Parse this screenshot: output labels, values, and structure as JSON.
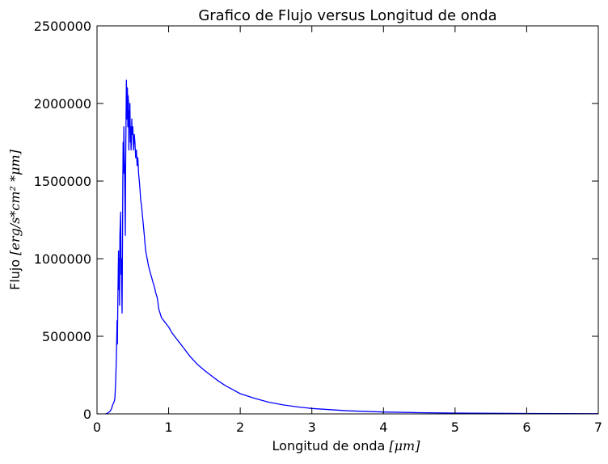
{
  "chart_data": {
    "type": "line",
    "title": "Grafico de Flujo versus Longitud de onda",
    "xlabel": {
      "text": "Longitud de onda ",
      "unit": "[μm]"
    },
    "ylabel": {
      "text": "Flujo ",
      "unit": "[erg/s*cm² *μm]"
    },
    "xlim": [
      0,
      7
    ],
    "ylim": [
      0,
      2500000
    ],
    "xticks": [
      "0",
      "1",
      "2",
      "3",
      "4",
      "5",
      "6",
      "7"
    ],
    "yticks": [
      "0",
      "500000",
      "1000000",
      "1500000",
      "2000000",
      "2500000"
    ],
    "grid": false,
    "line_color": "#0000ff",
    "series": [
      {
        "x": [
          0.12,
          0.15,
          0.18,
          0.2,
          0.22,
          0.24,
          0.25,
          0.26,
          0.27,
          0.28,
          0.285,
          0.29,
          0.3,
          0.305,
          0.31,
          0.315,
          0.32,
          0.33,
          0.335,
          0.34,
          0.35,
          0.355,
          0.36,
          0.365,
          0.37,
          0.375,
          0.38,
          0.385,
          0.39,
          0.395,
          0.4,
          0.405,
          0.41,
          0.415,
          0.42,
          0.425,
          0.43,
          0.435,
          0.44,
          0.445,
          0.45,
          0.455,
          0.46,
          0.465,
          0.47,
          0.475,
          0.48,
          0.485,
          0.49,
          0.5,
          0.51,
          0.52,
          0.53,
          0.54,
          0.55,
          0.56,
          0.57,
          0.58,
          0.59,
          0.6,
          0.61,
          0.62,
          0.63,
          0.64,
          0.65,
          0.66,
          0.67,
          0.68,
          0.7,
          0.72,
          0.75,
          0.78,
          0.8,
          0.82,
          0.84,
          0.85,
          0.86,
          0.88,
          0.9,
          0.95,
          1.0,
          1.05,
          1.1,
          1.15,
          1.2,
          1.25,
          1.3,
          1.35,
          1.4,
          1.5,
          1.6,
          1.7,
          1.8,
          1.9,
          2.0,
          2.2,
          2.4,
          2.6,
          2.8,
          3.0,
          3.5,
          4.0,
          4.5,
          5.0,
          5.5,
          6.0,
          6.5,
          7.0
        ],
        "y": [
          0,
          5000,
          15000,
          30000,
          60000,
          80000,
          100000,
          200000,
          350000,
          600000,
          450000,
          700000,
          1050000,
          800000,
          1000000,
          700000,
          1150000,
          1300000,
          900000,
          1000000,
          650000,
          1000000,
          1500000,
          1750000,
          1550000,
          1850000,
          1650000,
          1600000,
          1400000,
          1150000,
          1600000,
          1900000,
          2150000,
          2050000,
          1900000,
          2100000,
          1850000,
          2050000,
          2000000,
          1700000,
          1950000,
          1850000,
          2000000,
          1750000,
          1850000,
          1700000,
          1750000,
          1900000,
          1800000,
          1850000,
          1700000,
          1800000,
          1750000,
          1650000,
          1700000,
          1600000,
          1650000,
          1550000,
          1500000,
          1450000,
          1380000,
          1350000,
          1300000,
          1250000,
          1200000,
          1150000,
          1100000,
          1050000,
          1000000,
          950000,
          900000,
          850000,
          820000,
          780000,
          750000,
          720000,
          680000,
          650000,
          620000,
          590000,
          560000,
          520000,
          490000,
          460000,
          430000,
          400000,
          370000,
          345000,
          320000,
          280000,
          245000,
          210000,
          180000,
          155000,
          130000,
          100000,
          75000,
          58000,
          45000,
          35000,
          20000,
          12000,
          8000,
          5000,
          3500,
          2500,
          1800,
          1300
        ]
      }
    ]
  }
}
